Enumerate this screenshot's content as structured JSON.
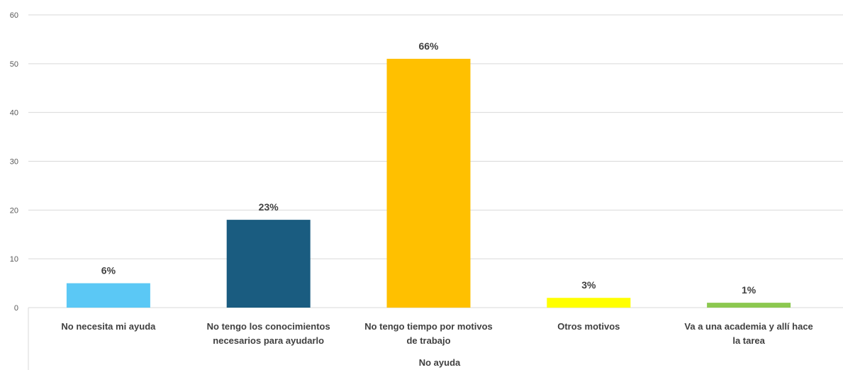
{
  "chart_data": {
    "type": "bar",
    "categories": [
      [
        "No necesita mi ayuda"
      ],
      [
        "No tengo los conocimientos",
        "necesarios para ayudarlo"
      ],
      [
        "No tengo tiempo por motivos",
        "de trabajo"
      ],
      [
        "Otros motivos"
      ],
      [
        "Va a una academia y allí hace",
        "la tarea"
      ]
    ],
    "values": [
      5,
      18,
      51,
      2,
      1
    ],
    "data_labels": [
      "6%",
      "23%",
      "66%",
      "3%",
      "1%"
    ],
    "colors": [
      "#5bc8f5",
      "#1a5c80",
      "#ffc000",
      "#ffff00",
      "#8cc850"
    ],
    "xlabel": "No ayuda",
    "ylabel": "",
    "title": "",
    "ylim": [
      0,
      60
    ],
    "yticks": [
      0,
      10,
      20,
      30,
      40,
      50,
      60
    ],
    "grid": true,
    "legend": "none"
  }
}
